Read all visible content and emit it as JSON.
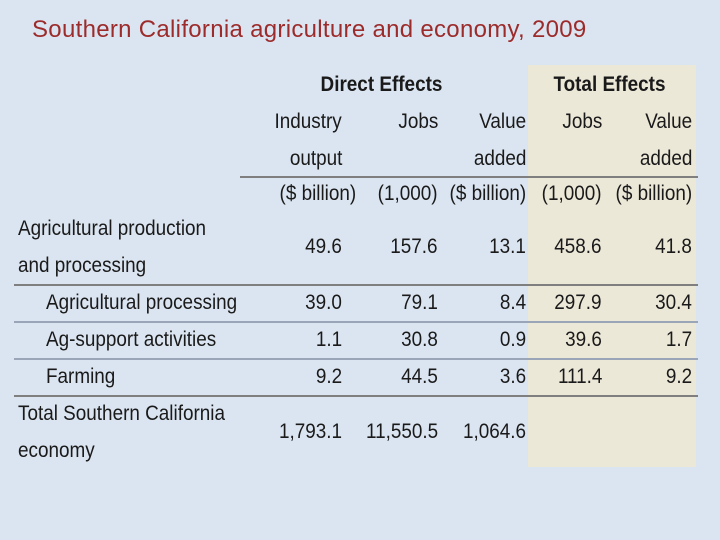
{
  "title": "Southern California agriculture and economy, 2009",
  "header": {
    "direct_effects": "Direct Effects",
    "total_effects": "Total Effects",
    "col_industry_1": "Industry",
    "col_industry_2": "output",
    "col_jobs": "Jobs",
    "col_value_1": "Value",
    "col_value_2": "added",
    "col_total_jobs": "Jobs",
    "col_total_value_1": "Value",
    "col_total_value_2": "added",
    "unit_industry": "($ billion)",
    "unit_jobs": "(1,000)",
    "unit_value": "($ billion)",
    "unit_total_jobs": "(1,000)",
    "unit_total_value": "($ billion)"
  },
  "rows": [
    {
      "label_1": "Agricultural production",
      "label_2": "and processing",
      "output": "49.6",
      "jobs": "157.6",
      "value": "13.1",
      "total_jobs": "458.6",
      "total_value": "41.8"
    },
    {
      "label_1": "Agricultural processing",
      "output": "39.0",
      "jobs": "79.1",
      "value": "8.4",
      "total_jobs": "297.9",
      "total_value": "30.4"
    },
    {
      "label_1": "Ag-support activities",
      "output": "1.1",
      "jobs": "30.8",
      "value": "0.9",
      "total_jobs": "39.6",
      "total_value": "1.7"
    },
    {
      "label_1": "Farming",
      "output": "9.2",
      "jobs": "44.5",
      "value": "3.6",
      "total_jobs": "111.4",
      "total_value": "9.2"
    },
    {
      "label_1": "Total Southern California",
      "label_2": "economy",
      "output": "1,793.1",
      "jobs": "11,550.5",
      "value": "1,064.6",
      "total_jobs": "",
      "total_value": ""
    }
  ]
}
